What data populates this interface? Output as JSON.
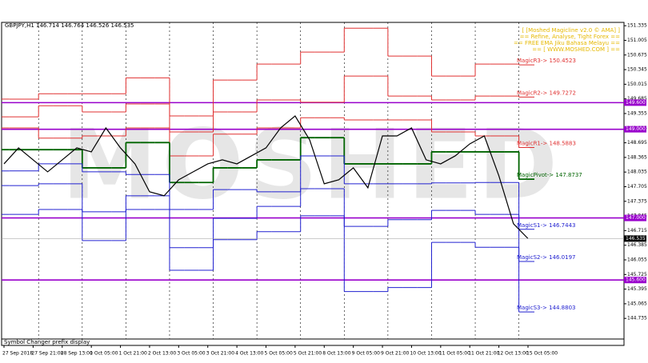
{
  "chart_data": {
    "type": "line",
    "header": "GBPJPY,H1 146.714 146.764 146.526 146.535",
    "watermark": "MOSHED",
    "info_lines": [
      "[ [Moshed Magicline v2.0 © AMA] ]",
      "== Refine, Analyse, Tight Forex ==",
      "== FREE EMA Jiku Bahasa Melayu ==",
      "== [ WWW.MOSHED.COM ] =="
    ],
    "footer": "Symbol Changer prefix display",
    "categories": [
      "27 Sep 2018",
      null,
      "27 Sep 21:00",
      null,
      "28 Sep 13:00",
      null,
      "1 Oct 05:00",
      null,
      "1 Oct 21:00",
      null,
      "2 Oct 13:00",
      null,
      "3 Oct 05:00",
      null,
      "3 Oct 21:00",
      null,
      "4 Oct 13:00",
      null,
      "5 Oct 05:00",
      null,
      "5 Oct 21:00",
      null,
      "8 Oct 13:00",
      null,
      "9 Oct 05:00",
      null,
      "9 Oct 21:00",
      null,
      "10 Oct 13:00",
      null,
      "11 Oct 05:00",
      null,
      "11 Oct 21:00",
      null,
      "12 Oct 13:00",
      null,
      "15 Oct 05:00"
    ],
    "ylim": [
      144.27,
      151.41
    ],
    "yticks": [
      151.335,
      151.005,
      150.675,
      150.345,
      150.015,
      149.685,
      149.355,
      149.025,
      148.695,
      148.365,
      148.035,
      147.705,
      147.375,
      147.045,
      146.715,
      146.385,
      146.055,
      145.725,
      145.395,
      145.065,
      144.735
    ],
    "last_price": 146.535,
    "levels": [
      {
        "value": 149.6,
        "label": "149.600"
      },
      {
        "value": 149.0,
        "label": "149.000"
      },
      {
        "value": 147.0,
        "label": "147.000"
      },
      {
        "value": 145.6,
        "label": "145.600"
      }
    ],
    "level_color": "#9900cc",
    "price": {
      "color": "#000000",
      "values": [
        148.22,
        148.58,
        148.31,
        148.04,
        148.31,
        148.58,
        148.49,
        149.03,
        148.58,
        148.22,
        147.59,
        147.5,
        147.86,
        148.04,
        148.22,
        148.31,
        148.22,
        148.4,
        148.58,
        149.03,
        149.3,
        148.76,
        147.77,
        147.86,
        148.13,
        147.68,
        148.85,
        148.85,
        149.03,
        148.31,
        148.22,
        148.4,
        148.67,
        148.85,
        147.95,
        146.87,
        146.535
      ]
    },
    "pivots": [
      {
        "label": "MagicR3-> 150.4523",
        "color": "#e03030",
        "values": [
          149.68,
          149.68,
          149.68,
          149.8,
          149.8,
          149.8,
          149.8,
          149.8,
          149.8,
          150.16,
          150.16,
          150.16,
          149.3,
          149.3,
          149.3,
          150.11,
          150.11,
          150.11,
          150.47,
          150.47,
          150.47,
          150.74,
          150.74,
          150.74,
          151.28,
          151.28,
          151.28,
          150.65,
          150.65,
          150.65,
          150.2,
          150.2,
          150.2,
          150.47,
          150.47,
          150.47,
          150.4523
        ]
      },
      {
        "label": "MagicR2-> 149.7272",
        "color": "#e03030",
        "values": [
          149.28,
          149.28,
          149.28,
          149.53,
          149.53,
          149.53,
          149.39,
          149.39,
          149.39,
          149.57,
          149.57,
          149.57,
          148.94,
          148.94,
          148.94,
          149.39,
          149.39,
          149.39,
          149.66,
          149.66,
          149.66,
          149.61,
          149.61,
          149.61,
          150.2,
          150.2,
          150.2,
          149.75,
          149.75,
          149.75,
          149.66,
          149.66,
          149.66,
          149.75,
          149.75,
          149.75,
          149.7272
        ]
      },
      {
        "label": "MagicR1-> 148.5883",
        "color": "#e03030",
        "values": [
          149.03,
          149.03,
          149.03,
          148.8,
          148.8,
          148.8,
          148.85,
          148.85,
          148.85,
          149.03,
          149.03,
          149.03,
          148.4,
          148.4,
          148.4,
          148.89,
          148.89,
          148.89,
          149.03,
          149.03,
          149.03,
          149.26,
          149.26,
          149.26,
          149.21,
          149.21,
          149.21,
          149.21,
          149.21,
          149.21,
          148.94,
          148.94,
          148.94,
          148.85,
          148.85,
          148.85,
          148.5883
        ]
      },
      {
        "label": "MagicPivot-> 147.8737",
        "color": "#006400",
        "values": [
          148.54,
          148.54,
          148.54,
          148.54,
          148.54,
          148.54,
          148.13,
          148.13,
          148.13,
          148.7,
          148.7,
          148.7,
          147.8,
          147.8,
          147.8,
          148.13,
          148.13,
          148.13,
          148.31,
          148.31,
          148.31,
          148.81,
          148.81,
          148.81,
          148.22,
          148.22,
          148.22,
          148.22,
          148.22,
          148.22,
          148.49,
          148.49,
          148.49,
          148.49,
          148.49,
          148.49,
          147.8737
        ]
      },
      {
        "label": "MagicS1-> 146.7443",
        "color": "#2020d0",
        "values": [
          148.06,
          148.06,
          148.06,
          148.22,
          148.22,
          148.22,
          148.04,
          148.04,
          148.04,
          147.98,
          147.98,
          147.98,
          147.19,
          147.19,
          147.19,
          147.64,
          147.64,
          147.64,
          147.59,
          147.59,
          147.59,
          148.4,
          148.4,
          148.4,
          147.77,
          147.77,
          147.77,
          147.77,
          147.77,
          147.77,
          147.79,
          147.79,
          147.79,
          147.8,
          147.8,
          147.8,
          146.7443
        ]
      },
      {
        "label": "MagicS2-> 146.0197",
        "color": "#2020d0",
        "values": [
          147.73,
          147.73,
          147.73,
          147.77,
          147.77,
          147.77,
          147.14,
          147.14,
          147.14,
          147.5,
          147.5,
          147.5,
          146.33,
          146.33,
          146.33,
          146.99,
          146.99,
          146.99,
          147.26,
          147.26,
          147.26,
          147.66,
          147.66,
          147.66,
          146.81,
          146.81,
          146.81,
          146.96,
          146.96,
          146.96,
          147.17,
          147.17,
          147.17,
          147.08,
          147.08,
          147.08,
          146.0197
        ]
      },
      {
        "label": "MagicS3-> 144.8803",
        "color": "#2020d0",
        "values": [
          147.08,
          147.08,
          147.08,
          147.19,
          147.19,
          147.19,
          146.49,
          146.49,
          146.49,
          147.19,
          147.19,
          147.19,
          145.82,
          145.82,
          145.82,
          146.51,
          146.51,
          146.51,
          146.69,
          146.69,
          146.69,
          147.05,
          147.05,
          147.05,
          145.34,
          145.34,
          145.34,
          145.43,
          145.43,
          145.43,
          146.45,
          146.45,
          146.45,
          146.34,
          146.34,
          146.34,
          144.8803
        ]
      }
    ]
  }
}
